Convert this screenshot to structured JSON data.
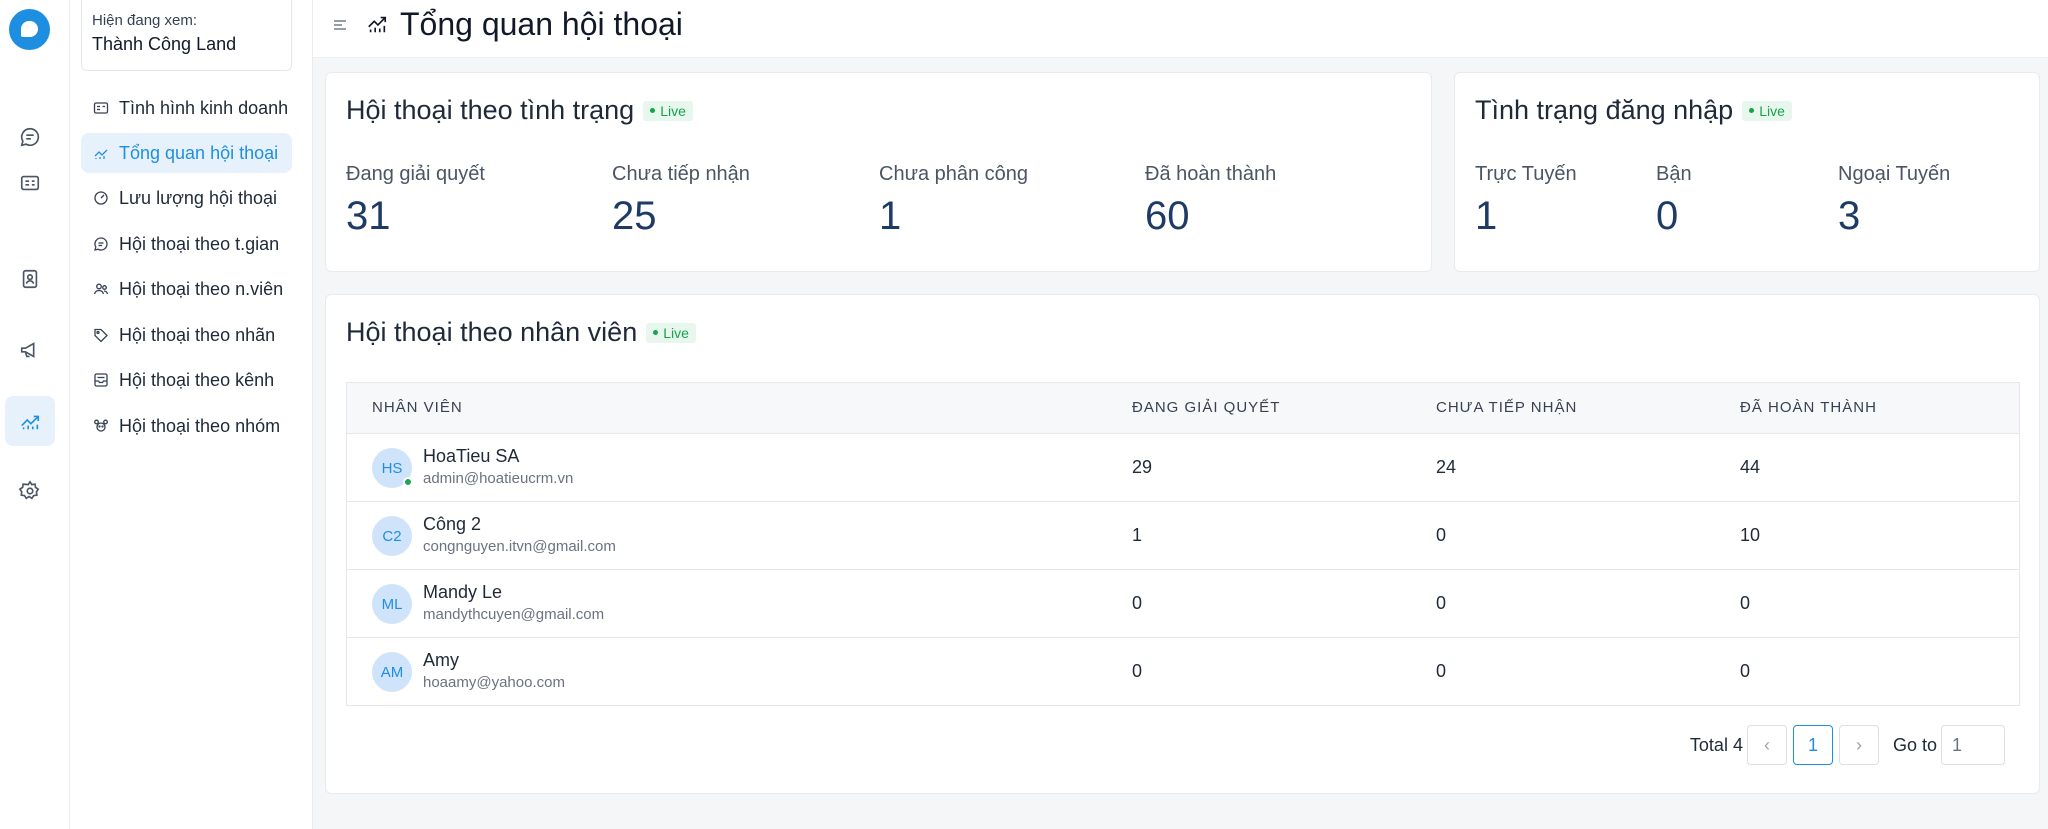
{
  "sidebar": {
    "viewing_label": "Hiện đang xem:",
    "viewing_value": "Thành Công Land",
    "items": [
      {
        "label": "Tình hình kinh doanh",
        "icon": "id-card-icon"
      },
      {
        "label": "Tổng quan hội thoại",
        "icon": "trend-icon",
        "active": true
      },
      {
        "label": "Lưu lượng hội thoại",
        "icon": "gauge-icon"
      },
      {
        "label": "Hội thoại theo t.gian",
        "icon": "chat-bubble-icon"
      },
      {
        "label": "Hội thoại theo n.viên",
        "icon": "users-icon"
      },
      {
        "label": "Hội thoại theo nhãn",
        "icon": "tag-icon"
      },
      {
        "label": "Hội thoại theo kênh",
        "icon": "inbox-icon"
      },
      {
        "label": "Hội thoại theo nhóm",
        "icon": "team-icon"
      }
    ]
  },
  "rail": {
    "items": [
      "chat-icon",
      "contact-card-icon",
      "address-book-icon",
      "megaphone-icon",
      "reports-icon",
      "settings-icon"
    ],
    "active": "reports-icon"
  },
  "header": {
    "title": "Tổng quan hội thoại"
  },
  "status_card": {
    "title": "Hội thoại theo tình trạng",
    "live": "Live",
    "stats": [
      {
        "label": "Đang giải quyết",
        "value": "31"
      },
      {
        "label": "Chưa tiếp nhận",
        "value": "25"
      },
      {
        "label": "Chưa phân công",
        "value": "1"
      },
      {
        "label": "Đã hoàn thành",
        "value": "60"
      }
    ]
  },
  "login_card": {
    "title": "Tình trạng đăng nhập",
    "live": "Live",
    "stats": [
      {
        "label": "Trực Tuyến",
        "value": "1"
      },
      {
        "label": "Bận",
        "value": "0"
      },
      {
        "label": "Ngoại Tuyến",
        "value": "3"
      }
    ]
  },
  "staff_card": {
    "title": "Hội thoại theo nhân viên",
    "live": "Live",
    "columns": [
      "NHÂN VIÊN",
      "ĐANG GIẢI QUYẾT",
      "CHƯA TIẾP NHẬN",
      "ĐÃ HOÀN THÀNH"
    ],
    "rows": [
      {
        "initials": "HS",
        "name": "HoaTieu SA",
        "email": "admin@hoatieucrm.vn",
        "in_progress": "29",
        "unassigned": "24",
        "done": "44"
      },
      {
        "initials": "C2",
        "name": "Công 2",
        "email": "congnguyen.itvn@gmail.com",
        "in_progress": "1",
        "unassigned": "0",
        "done": "10"
      },
      {
        "initials": "ML",
        "name": "Mandy Le",
        "email": "mandythcuyen@gmail.com",
        "in_progress": "0",
        "unassigned": "0",
        "done": "0"
      },
      {
        "initials": "AM",
        "name": "Amy",
        "email": "hoaamy@yahoo.com",
        "in_progress": "0",
        "unassigned": "0",
        "done": "0"
      }
    ],
    "pagination": {
      "total": "Total 4",
      "current_page": "1",
      "goto_label": "Go to",
      "goto_value": "1",
      "prev": "‹",
      "next": "›"
    }
  },
  "colors": {
    "accent": "#1e8fe0",
    "live_green": "#16a34a",
    "stat_value": "#1e3a66"
  }
}
